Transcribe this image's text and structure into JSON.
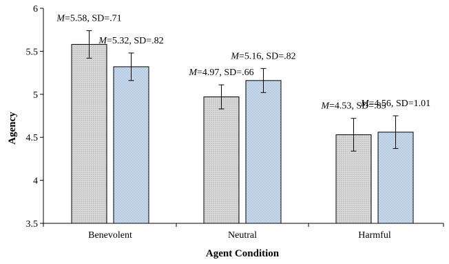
{
  "chart_data": {
    "type": "bar",
    "xlabel": "Agent Condition",
    "ylabel": "Agency",
    "ylim": [
      3.5,
      6
    ],
    "yticks": [
      "3.5",
      "4",
      "4.5",
      "5",
      "5.5",
      "6"
    ],
    "categories": [
      "Benevolent",
      "Neutral",
      "Harmful"
    ],
    "grid": false,
    "legend": "none",
    "series": [
      {
        "color": "#d4d4d4",
        "pattern": "dense-dots",
        "values": [
          5.58,
          4.97,
          4.53
        ],
        "error": [
          0.16,
          0.14,
          0.19
        ],
        "labels": [
          {
            "m_prefix": "M",
            "text": "=5.58, SD=.71"
          },
          {
            "m_prefix": "M",
            "text": "=4.97, SD=.66"
          },
          {
            "m_prefix": "M",
            "text": "=4.53, SD=.85"
          }
        ]
      },
      {
        "color": "#b8cce4",
        "pattern": "light-dots",
        "values": [
          5.32,
          5.16,
          4.56
        ],
        "error": [
          0.16,
          0.14,
          0.19
        ],
        "labels": [
          {
            "m_prefix": "M",
            "text": "=5.32, SD=.82"
          },
          {
            "m_prefix": "M",
            "text": "=5.16, SD=.82"
          },
          {
            "m_prefix": "M",
            "text": "=4.56, SD=1.01"
          }
        ]
      }
    ]
  }
}
